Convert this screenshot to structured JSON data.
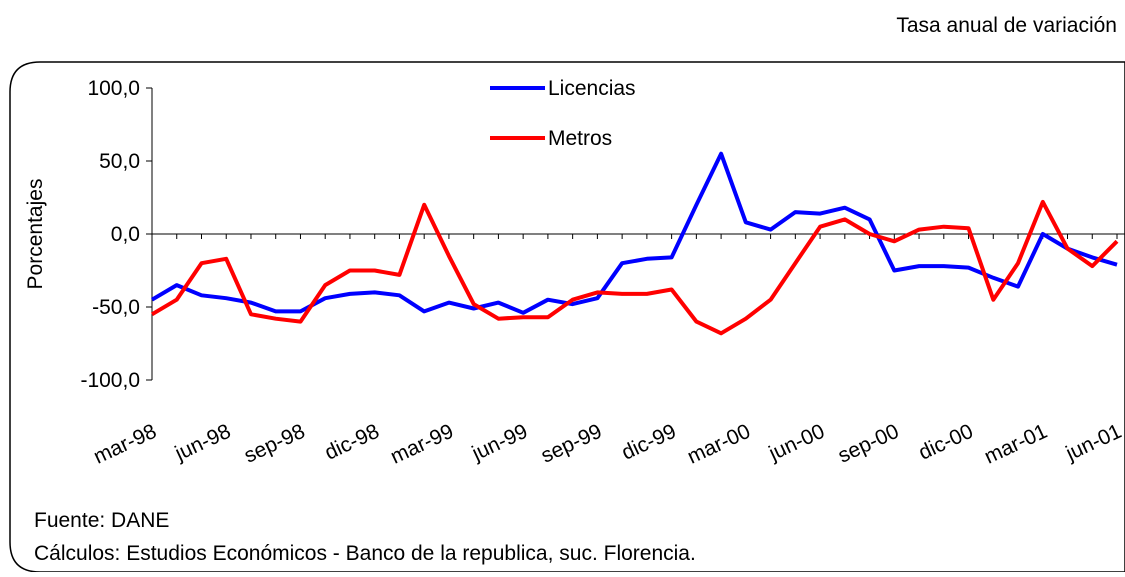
{
  "chart_data": {
    "type": "line",
    "subtitle": "Tasa anual de variación",
    "y_label": "Porcentajes",
    "source": "Fuente: DANE",
    "note": "Cálculos:  Estudios Económicos - Banco de la republica, suc. Florencia.",
    "categories": [
      "mar-98",
      null,
      null,
      "jun-98",
      null,
      null,
      "sep-98",
      null,
      null,
      "dic-98",
      null,
      null,
      "mar-99",
      null,
      null,
      "jun-99",
      null,
      null,
      "sep-99",
      null,
      null,
      "dic-99",
      null,
      null,
      "mar-00",
      null,
      null,
      "jun-00",
      null,
      null,
      "sep-00",
      null,
      null,
      "dic-00",
      null,
      null,
      "mar-01",
      null,
      null,
      "jun-01"
    ],
    "series": [
      {
        "name": "Licencias",
        "color": "#0000ff",
        "values": [
          -45,
          -35,
          -42,
          -44,
          -47,
          -53,
          -53,
          -44,
          -41,
          -40,
          -42,
          -53,
          -47,
          -51,
          -47,
          -54,
          -45,
          -48,
          -44,
          -20,
          -17,
          -16,
          20,
          55,
          8,
          3,
          15,
          14,
          18,
          10,
          -25,
          -22,
          -22,
          -23,
          -30,
          -36,
          0,
          -10,
          -16,
          -21
        ]
      },
      {
        "name": "Metros",
        "color": "#ff0000",
        "values": [
          -55,
          -45,
          -20,
          -17,
          -55,
          -58,
          -60,
          -35,
          -25,
          -25,
          -28,
          20,
          -15,
          -48,
          -58,
          -57,
          -57,
          -45,
          -40,
          -41,
          -41,
          -38,
          -60,
          -68,
          -58,
          -45,
          -20,
          5,
          10,
          0,
          -5,
          3,
          5,
          4,
          -45,
          -20,
          22,
          -10,
          -22,
          -5
        ]
      }
    ],
    "ylim": [
      -100,
      100
    ],
    "yticks": [
      {
        "value": -100,
        "label": "-100,0"
      },
      {
        "value": -50,
        "label": "-50,0"
      },
      {
        "value": 0,
        "label": "0,0"
      },
      {
        "value": 50,
        "label": "50,0"
      },
      {
        "value": 100,
        "label": "100,0"
      }
    ]
  }
}
